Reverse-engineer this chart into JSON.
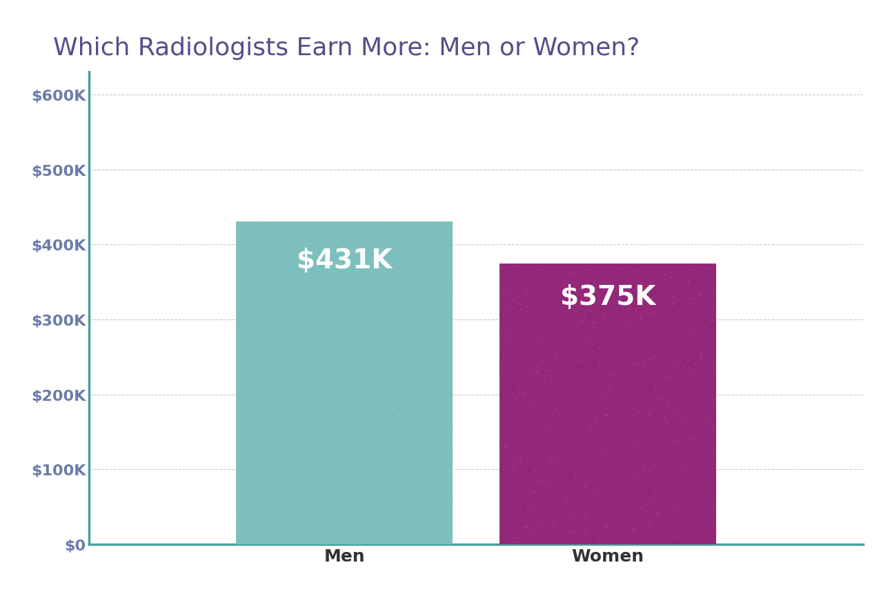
{
  "title": "Which Radiologists Earn More: Men or Women?",
  "title_color": "#5b4b8a",
  "title_fontsize": 26,
  "categories": [
    "Men",
    "Women"
  ],
  "values": [
    431000,
    375000
  ],
  "bar_colors": [
    "#7dbfbd",
    "#932878"
  ],
  "label_texts": [
    "$431K",
    "$375K"
  ],
  "background_color": "#ffffff",
  "axis_color": "#4a9fa0",
  "ytick_color": "#6b7baa",
  "xtick_color": "#333333",
  "grid_color": "#bbbbbb",
  "ylim": [
    0,
    630000
  ],
  "yticks": [
    0,
    100000,
    200000,
    300000,
    400000,
    500000,
    600000
  ],
  "ytick_labels": [
    "$0",
    "$100K",
    "$200K",
    "$300K",
    "$400K",
    "$500K",
    "$600K"
  ],
  "bar_label_fontsize": 28,
  "bar_label_color": "#ffffff",
  "xtick_fontsize": 18,
  "ytick_fontsize": 16,
  "bar_width": 0.28,
  "bar_positions": [
    0.38,
    0.72
  ]
}
